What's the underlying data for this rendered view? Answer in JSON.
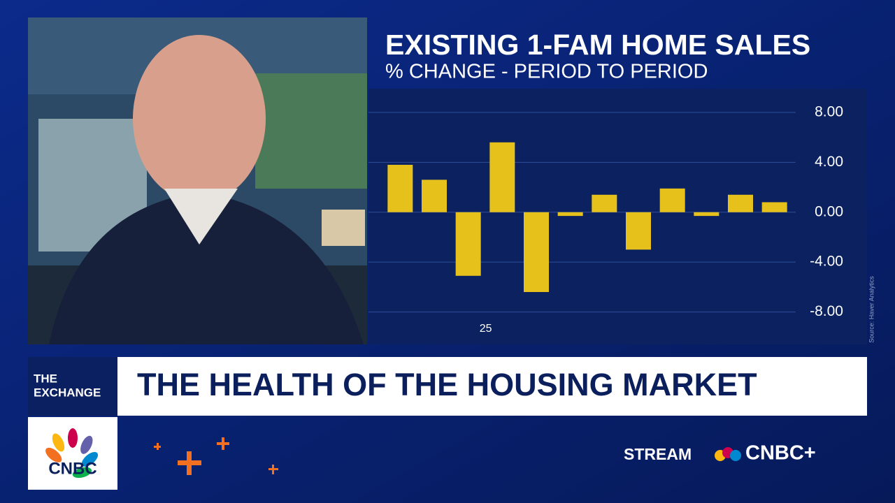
{
  "chart_data": {
    "type": "bar",
    "title": "EXISTING 1-FAM HOME SALES",
    "subtitle": "% CHANGE - PERIOD TO PERIOD",
    "source": "Source: Haver Analytics",
    "categories": [
      null,
      null,
      "25",
      null,
      null,
      null,
      null,
      null,
      null,
      null,
      null,
      null
    ],
    "values": [
      3.8,
      2.6,
      -5.1,
      5.6,
      -6.4,
      -0.3,
      1.4,
      -3.0,
      1.9,
      -0.3,
      1.4,
      0.8
    ],
    "color": "#e6c11c",
    "ylim": [
      -10.6,
      9.9
    ],
    "yticks": [
      {
        "value": 8,
        "label": "8.00"
      },
      {
        "value": 4,
        "label": "4.00"
      },
      {
        "value": 0,
        "label": "0.00"
      },
      {
        "value": -4,
        "label": "-4.00"
      },
      {
        "value": -8,
        "label": "-8.00"
      }
    ],
    "grid": true
  },
  "lower_third": {
    "show_name": [
      "THE",
      "EXCHANGE"
    ],
    "headline": "THE HEALTH OF THE HOUSING MARKET",
    "logo": "CNBC",
    "stream": "STREAM",
    "stream_brand": "CNBC+"
  }
}
